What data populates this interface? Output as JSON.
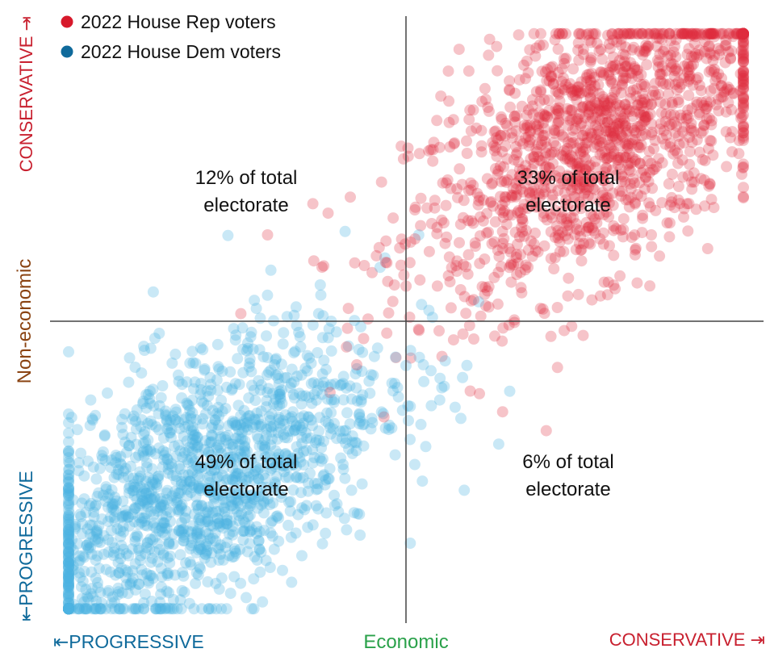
{
  "chart_data": {
    "type": "scatter",
    "x_axis": {
      "label": "Economic",
      "left_end": "⇤PROGRESSIVE",
      "right_end": "CONSERVATIVE ⇥"
    },
    "y_axis": {
      "label": "Non-economic",
      "bottom_end": "⇤PROGRESSIVE",
      "top_end": "CONSERVATIVE ⇥"
    },
    "legend": {
      "placement": "top-left",
      "entries": [
        {
          "label": "2022 House Rep voters",
          "color": "#d7192b"
        },
        {
          "label": "2022 House Dem voters",
          "color": "#0f6a9b"
        }
      ]
    },
    "quadrant_labels": [
      {
        "quadrant": "top-left",
        "line1": "12% of total",
        "line2": "electorate",
        "share_percent": 12
      },
      {
        "quadrant": "top-right",
        "line1": "33% of total",
        "line2": "electorate",
        "share_percent": 33
      },
      {
        "quadrant": "bottom-left",
        "line1": "49% of total",
        "line2": "electorate",
        "share_percent": 49
      },
      {
        "quadrant": "bottom-right",
        "line1": "6% of total",
        "line2": "electorate",
        "share_percent": 6
      }
    ],
    "series": [
      {
        "name": "2022 House Rep voters",
        "color": "#de2a3c",
        "center": [
          0.55,
          0.6
        ],
        "spread": [
          0.27,
          0.27
        ],
        "correlation": 0.6,
        "n": 1500
      },
      {
        "name": "2022 House Dem voters",
        "color": "#4bb3e2",
        "center": [
          -0.6,
          -0.55
        ],
        "spread": [
          0.27,
          0.27
        ],
        "correlation": 0.6,
        "n": 1600
      }
    ],
    "colors": {
      "axis_line": "#444444",
      "conservative": "#c8202f",
      "progressive": "#0f6a9b",
      "economic": "#2aa14a",
      "non_economic": "#8a4312",
      "quadrant_text": "#111111"
    },
    "ranges": {
      "x": [
        -1,
        1
      ],
      "y": [
        -1,
        1
      ]
    },
    "grid": false
  }
}
